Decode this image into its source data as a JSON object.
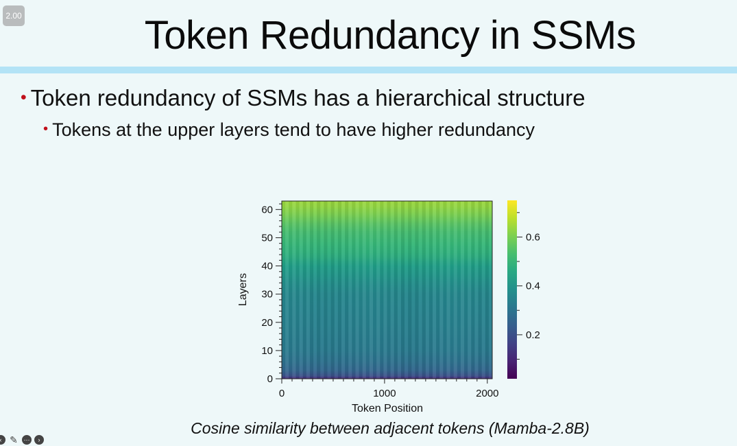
{
  "badge": {
    "text": "2.00"
  },
  "slide": {
    "title": "Token Redundancy in SSMs",
    "bullet1": "Token redundancy of SSMs has a hierarchical structure",
    "bullet2": "Tokens at the upper layers tend to have higher redundancy",
    "caption": "Cosine similarity between adjacent tokens (Mamba-2.8B)"
  },
  "colors": {
    "background": "#eef8f9",
    "rule": "#b3e3f6",
    "bullet": "#c0101b"
  },
  "toolbar": {
    "icons": [
      "back-icon",
      "pencil-icon",
      "more-icon",
      "forward-icon"
    ]
  },
  "chart_data": {
    "type": "heatmap",
    "xlabel": "Token Position",
    "ylabel": "Layers",
    "x_ticks": [
      0,
      1000,
      2000
    ],
    "x_tick_labels": [
      "0",
      "1000",
      "2000"
    ],
    "y_ticks": [
      0,
      10,
      20,
      30,
      40,
      50,
      60
    ],
    "y_tick_labels": [
      "0",
      "10",
      "20",
      "30",
      "40",
      "50",
      "60"
    ],
    "xlim": [
      0,
      2048
    ],
    "ylim": [
      0,
      63
    ],
    "colormap": "viridis",
    "colorbar": {
      "range": [
        0.02,
        0.75
      ],
      "ticks": [
        0.2,
        0.4,
        0.6
      ],
      "tick_labels": [
        "0.2",
        "0.4",
        "0.6"
      ]
    },
    "layer_profile": {
      "layers": [
        0,
        1,
        3,
        6,
        10,
        15,
        20,
        25,
        30,
        35,
        40,
        43,
        45,
        48,
        52,
        55,
        58,
        61,
        63
      ],
      "mean_similarity": [
        0.1,
        0.2,
        0.26,
        0.29,
        0.32,
        0.33,
        0.34,
        0.35,
        0.36,
        0.39,
        0.43,
        0.47,
        0.49,
        0.51,
        0.53,
        0.56,
        0.6,
        0.63,
        0.64
      ]
    },
    "grid": false,
    "legend": "none"
  }
}
